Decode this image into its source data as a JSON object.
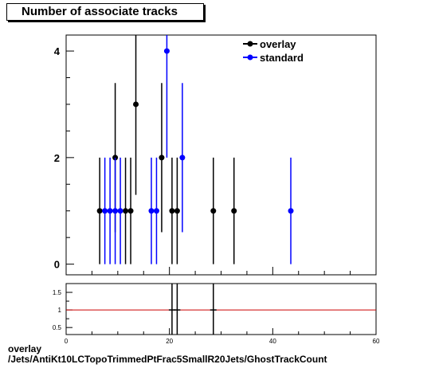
{
  "chart_data": [
    {
      "type": "scatter",
      "title": "Number of associate tracks",
      "xlim": [
        0,
        60
      ],
      "ylim": [
        -0.2,
        4.3
      ],
      "y_ticks": [
        "0",
        "2",
        "4"
      ],
      "legend": {
        "placement": "top-right"
      },
      "series": [
        {
          "name": "overlay",
          "color": "#000000",
          "points": [
            {
              "x": 6.5,
              "y": 1,
              "lo": 0,
              "hi": 2
            },
            {
              "x": 9.5,
              "y": 2,
              "lo": 0.6,
              "hi": 3.4
            },
            {
              "x": 11.5,
              "y": 1,
              "lo": 0,
              "hi": 2
            },
            {
              "x": 12.5,
              "y": 1,
              "lo": 0,
              "hi": 2
            },
            {
              "x": 13.5,
              "y": 3,
              "lo": 1.3,
              "hi": 4.3
            },
            {
              "x": 18.5,
              "y": 2,
              "lo": 0.6,
              "hi": 3.4
            },
            {
              "x": 20.5,
              "y": 1,
              "lo": 0,
              "hi": 2
            },
            {
              "x": 21.5,
              "y": 1,
              "lo": 0,
              "hi": 2
            },
            {
              "x": 28.5,
              "y": 1,
              "lo": 0,
              "hi": 2
            },
            {
              "x": 32.5,
              "y": 1,
              "lo": 0,
              "hi": 2
            }
          ]
        },
        {
          "name": "standard",
          "color": "#0000ff",
          "points": [
            {
              "x": 7.5,
              "y": 1,
              "lo": 0,
              "hi": 2
            },
            {
              "x": 8.5,
              "y": 1,
              "lo": 0,
              "hi": 2
            },
            {
              "x": 9.5,
              "y": 1,
              "lo": 0,
              "hi": 2
            },
            {
              "x": 10.5,
              "y": 1,
              "lo": 0,
              "hi": 2
            },
            {
              "x": 16.5,
              "y": 1,
              "lo": 0,
              "hi": 2
            },
            {
              "x": 17.5,
              "y": 1,
              "lo": 0,
              "hi": 2
            },
            {
              "x": 19.5,
              "y": 4,
              "lo": 2,
              "hi": 6
            },
            {
              "x": 22.5,
              "y": 2,
              "lo": 0.6,
              "hi": 3.4
            },
            {
              "x": 43.5,
              "y": 1,
              "lo": 0,
              "hi": 2
            }
          ]
        }
      ]
    },
    {
      "type": "line",
      "title": "",
      "xlim": [
        0,
        60
      ],
      "ylim": [
        0.3,
        1.75
      ],
      "x_ticks": [
        "0",
        "20",
        "40",
        "60"
      ],
      "y_ticks": [
        "0.5",
        "1",
        "1.5"
      ],
      "reference_line": {
        "y": 1,
        "color": "#cc0000"
      },
      "ratio_errorbars": [
        {
          "x": 20.5,
          "lo": 0.3,
          "hi": 1.75
        },
        {
          "x": 21.5,
          "lo": 0.3,
          "hi": 1.75
        },
        {
          "x": 28.5,
          "lo": 0.3,
          "hi": 1.75
        }
      ]
    }
  ],
  "caption": {
    "line1": "overlay",
    "line2": "/Jets/AntiKt10LCTopoTrimmedPtFrac5SmallR20Jets/GhostTrackCount"
  }
}
